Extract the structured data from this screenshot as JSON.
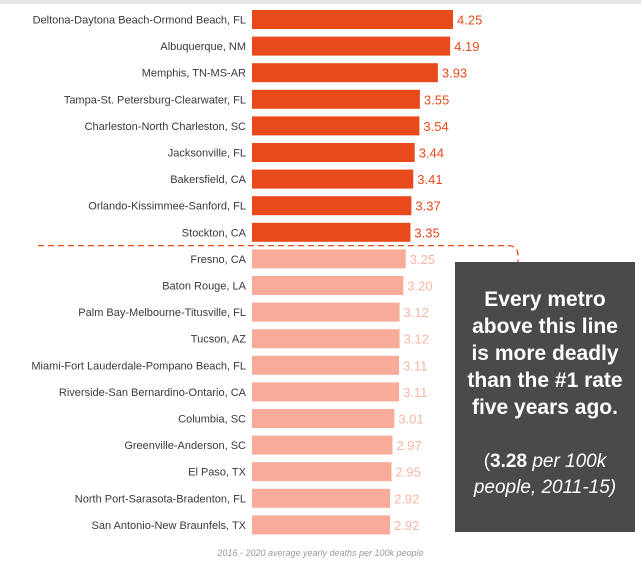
{
  "chart_data": {
    "type": "bar",
    "orientation": "horizontal",
    "categories": [
      "Deltona-Daytona Beach-Ormond Beach, FL",
      "Albuquerque, NM",
      "Memphis, TN-MS-AR",
      "Tampa-St. Petersburg-Clearwater, FL",
      "Charleston-North Charleston, SC",
      "Jacksonville, FL",
      "Bakersfield, CA",
      "Orlando-Kissimmee-Sanford, FL",
      "Stockton, CA",
      "Fresno, CA",
      "Baton Rouge, LA",
      "Palm Bay-Melbourne-Titusville, FL",
      "Tucson, AZ",
      "Miami-Fort Lauderdale-Pompano Beach, FL",
      "Riverside-San Bernardino-Ontario, CA",
      "Columbia, SC",
      "Greenville-Anderson, SC",
      "El Paso, TX",
      "North Port-Sarasota-Bradenton, FL",
      "San Antonio-New Braunfels, TX"
    ],
    "values": [
      4.25,
      4.19,
      3.93,
      3.55,
      3.54,
      3.44,
      3.41,
      3.37,
      3.35,
      3.25,
      3.2,
      3.12,
      3.12,
      3.11,
      3.11,
      3.01,
      2.97,
      2.95,
      2.92,
      2.92
    ],
    "value_labels": [
      "4.25",
      "4.19",
      "3.93",
      "3.55",
      "3.54",
      "3.44",
      "3.41",
      "3.37",
      "3.35",
      "3.25",
      "3.20",
      "3.12",
      "3.12",
      "3.11",
      "3.11",
      "3.01",
      "2.97",
      "2.95",
      "2.92",
      "2.92"
    ],
    "xlabel": "2016 - 2020 average yearly deaths per 100k people",
    "xlim": [
      0,
      4.25
    ],
    "grid": false,
    "threshold": 3.28,
    "colors": {
      "above": "#e84a1c",
      "below": "#f7ab98",
      "label_above": "#e84a1c",
      "label_below": "#f7b6a6",
      "line": "#e84a1c",
      "text": "#3a3a3a"
    },
    "annotation": {
      "main": "Every metro\nabove this line\nis more deadly\nthan the #1 rate\nfive years ago.",
      "sub_open": "(",
      "sub_value": "3.28",
      "sub_unit": "per 100k people, 2011-15)"
    }
  }
}
